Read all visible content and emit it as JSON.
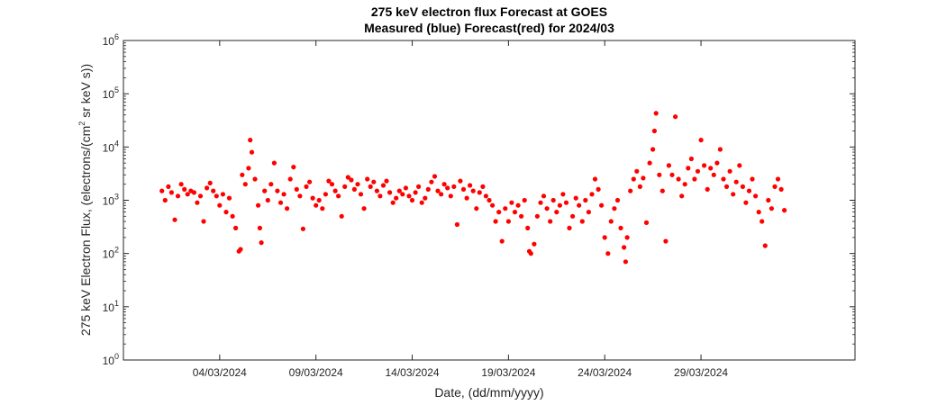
{
  "chart_data": {
    "type": "scatter",
    "title": "275 keV electron flux Forecast at GOES",
    "subtitle": "Measured (blue) Forecast(red) for 2024/03",
    "xlabel": "Date, (dd/mm/yyyy)",
    "ylabel_main": "275 keV Electron Flux, (electrons/(cm",
    "ylabel_sup": "2",
    "ylabel_rest": " sr keV s))",
    "y_scale": "log",
    "ylim": [
      1,
      1000000
    ],
    "y_ticks": [
      {
        "value": 1,
        "base": "10",
        "exp": "0"
      },
      {
        "value": 10,
        "base": "10",
        "exp": "1"
      },
      {
        "value": 100,
        "base": "10",
        "exp": "2"
      },
      {
        "value": 1000,
        "base": "10",
        "exp": "3"
      },
      {
        "value": 10000,
        "base": "10",
        "exp": "4"
      },
      {
        "value": 100000,
        "base": "10",
        "exp": "5"
      },
      {
        "value": 1000000,
        "base": "10",
        "exp": "6"
      }
    ],
    "xlim": [
      "2024-02-28T00:00",
      "2024-04-06T00:00"
    ],
    "x_ticks": [
      {
        "date": "2024-03-04T00:00",
        "label": "04/03/2024"
      },
      {
        "date": "2024-03-09T00:00",
        "label": "09/03/2024"
      },
      {
        "date": "2024-03-14T00:00",
        "label": "14/03/2024"
      },
      {
        "date": "2024-03-19T00:00",
        "label": "19/03/2024"
      },
      {
        "date": "2024-03-24T00:00",
        "label": "24/03/2024"
      },
      {
        "date": "2024-03-29T00:00",
        "label": "29/03/2024"
      }
    ],
    "grid": false,
    "series": [
      {
        "color": "#ff0000",
        "marker": "circle",
        "points": [
          [
            "2024-03-01T00:00",
            1500
          ],
          [
            "2024-03-01T04:00",
            1000
          ],
          [
            "2024-03-01T08:00",
            1800
          ],
          [
            "2024-03-01T12:00",
            1400
          ],
          [
            "2024-03-01T16:00",
            430
          ],
          [
            "2024-03-01T20:00",
            1200
          ],
          [
            "2024-03-02T00:00",
            2000
          ],
          [
            "2024-03-02T04:00",
            1600
          ],
          [
            "2024-03-02T08:00",
            1300
          ],
          [
            "2024-03-02T12:00",
            1500
          ],
          [
            "2024-03-02T16:00",
            1400
          ],
          [
            "2024-03-02T20:00",
            900
          ],
          [
            "2024-03-03T00:00",
            1200
          ],
          [
            "2024-03-03T04:00",
            400
          ],
          [
            "2024-03-03T08:00",
            1700
          ],
          [
            "2024-03-03T12:00",
            2100
          ],
          [
            "2024-03-03T16:00",
            1500
          ],
          [
            "2024-03-03T20:00",
            1200
          ],
          [
            "2024-03-04T00:00",
            800
          ],
          [
            "2024-03-04T04:00",
            1300
          ],
          [
            "2024-03-04T08:00",
            600
          ],
          [
            "2024-03-04T12:00",
            1100
          ],
          [
            "2024-03-04T16:00",
            500
          ],
          [
            "2024-03-04T20:00",
            300
          ],
          [
            "2024-03-05T00:00",
            110
          ],
          [
            "2024-03-05T02:00",
            120
          ],
          [
            "2024-03-05T04:00",
            3000
          ],
          [
            "2024-03-05T08:00",
            2000
          ],
          [
            "2024-03-05T12:00",
            4000
          ],
          [
            "2024-03-05T14:00",
            13500
          ],
          [
            "2024-03-05T16:00",
            8000
          ],
          [
            "2024-03-05T20:00",
            2500
          ],
          [
            "2024-03-06T00:00",
            800
          ],
          [
            "2024-03-06T02:00",
            300
          ],
          [
            "2024-03-06T04:00",
            160
          ],
          [
            "2024-03-06T08:00",
            1500
          ],
          [
            "2024-03-06T12:00",
            1000
          ],
          [
            "2024-03-06T16:00",
            2000
          ],
          [
            "2024-03-06T20:00",
            5000
          ],
          [
            "2024-03-07T00:00",
            1500
          ],
          [
            "2024-03-07T04:00",
            900
          ],
          [
            "2024-03-07T08:00",
            1300
          ],
          [
            "2024-03-07T12:00",
            700
          ],
          [
            "2024-03-07T16:00",
            2500
          ],
          [
            "2024-03-07T20:00",
            4200
          ],
          [
            "2024-03-08T00:00",
            1600
          ],
          [
            "2024-03-08T04:00",
            1200
          ],
          [
            "2024-03-08T08:00",
            290
          ],
          [
            "2024-03-08T12:00",
            1800
          ],
          [
            "2024-03-08T16:00",
            2200
          ],
          [
            "2024-03-08T20:00",
            1100
          ],
          [
            "2024-03-09T00:00",
            800
          ],
          [
            "2024-03-09T04:00",
            1000
          ],
          [
            "2024-03-09T08:00",
            700
          ],
          [
            "2024-03-09T12:00",
            1300
          ],
          [
            "2024-03-09T16:00",
            2300
          ],
          [
            "2024-03-09T20:00",
            2000
          ],
          [
            "2024-03-10T00:00",
            1500
          ],
          [
            "2024-03-10T04:00",
            1200
          ],
          [
            "2024-03-10T08:00",
            500
          ],
          [
            "2024-03-10T12:00",
            1800
          ],
          [
            "2024-03-10T16:00",
            2700
          ],
          [
            "2024-03-10T20:00",
            2400
          ],
          [
            "2024-03-11T00:00",
            1600
          ],
          [
            "2024-03-11T04:00",
            2000
          ],
          [
            "2024-03-11T08:00",
            1300
          ],
          [
            "2024-03-11T12:00",
            700
          ],
          [
            "2024-03-11T16:00",
            2500
          ],
          [
            "2024-03-11T20:00",
            1800
          ],
          [
            "2024-03-12T00:00",
            2200
          ],
          [
            "2024-03-12T04:00",
            1500
          ],
          [
            "2024-03-12T08:00",
            1200
          ],
          [
            "2024-03-12T12:00",
            1900
          ],
          [
            "2024-03-12T16:00",
            2300
          ],
          [
            "2024-03-12T20:00",
            1400
          ],
          [
            "2024-03-13T00:00",
            900
          ],
          [
            "2024-03-13T04:00",
            1100
          ],
          [
            "2024-03-13T08:00",
            1500
          ],
          [
            "2024-03-13T12:00",
            1300
          ],
          [
            "2024-03-13T16:00",
            1700
          ],
          [
            "2024-03-13T20:00",
            1200
          ],
          [
            "2024-03-14T00:00",
            1000
          ],
          [
            "2024-03-14T04:00",
            1400
          ],
          [
            "2024-03-14T08:00",
            1800
          ],
          [
            "2024-03-14T12:00",
            900
          ],
          [
            "2024-03-14T16:00",
            1100
          ],
          [
            "2024-03-14T20:00",
            1600
          ],
          [
            "2024-03-15T00:00",
            2200
          ],
          [
            "2024-03-15T04:00",
            2800
          ],
          [
            "2024-03-15T08:00",
            1500
          ],
          [
            "2024-03-15T12:00",
            1300
          ],
          [
            "2024-03-15T16:00",
            2000
          ],
          [
            "2024-03-15T20:00",
            1700
          ],
          [
            "2024-03-16T00:00",
            1200
          ],
          [
            "2024-03-16T04:00",
            1800
          ],
          [
            "2024-03-16T08:00",
            350
          ],
          [
            "2024-03-16T12:00",
            2300
          ],
          [
            "2024-03-16T16:00",
            1600
          ],
          [
            "2024-03-16T20:00",
            1100
          ],
          [
            "2024-03-17T00:00",
            1900
          ],
          [
            "2024-03-17T04:00",
            1500
          ],
          [
            "2024-03-17T08:00",
            700
          ],
          [
            "2024-03-17T12:00",
            1400
          ],
          [
            "2024-03-17T16:00",
            1800
          ],
          [
            "2024-03-17T20:00",
            1200
          ],
          [
            "2024-03-18T00:00",
            1000
          ],
          [
            "2024-03-18T04:00",
            800
          ],
          [
            "2024-03-18T08:00",
            400
          ],
          [
            "2024-03-18T12:00",
            600
          ],
          [
            "2024-03-18T16:00",
            170
          ],
          [
            "2024-03-18T20:00",
            700
          ],
          [
            "2024-03-19T00:00",
            400
          ],
          [
            "2024-03-19T04:00",
            900
          ],
          [
            "2024-03-19T08:00",
            600
          ],
          [
            "2024-03-19T12:00",
            800
          ],
          [
            "2024-03-19T16:00",
            500
          ],
          [
            "2024-03-19T20:00",
            1000
          ],
          [
            "2024-03-20T00:00",
            300
          ],
          [
            "2024-03-20T02:00",
            110
          ],
          [
            "2024-03-20T04:00",
            100
          ],
          [
            "2024-03-20T08:00",
            150
          ],
          [
            "2024-03-20T12:00",
            500
          ],
          [
            "2024-03-20T16:00",
            900
          ],
          [
            "2024-03-20T20:00",
            1200
          ],
          [
            "2024-03-21T00:00",
            700
          ],
          [
            "2024-03-21T04:00",
            400
          ],
          [
            "2024-03-21T08:00",
            1000
          ],
          [
            "2024-03-21T12:00",
            600
          ],
          [
            "2024-03-21T16:00",
            800
          ],
          [
            "2024-03-21T20:00",
            1300
          ],
          [
            "2024-03-22T00:00",
            900
          ],
          [
            "2024-03-22T04:00",
            300
          ],
          [
            "2024-03-22T08:00",
            500
          ],
          [
            "2024-03-22T12:00",
            1100
          ],
          [
            "2024-03-22T16:00",
            800
          ],
          [
            "2024-03-22T20:00",
            400
          ],
          [
            "2024-03-23T00:00",
            1000
          ],
          [
            "2024-03-23T04:00",
            600
          ],
          [
            "2024-03-23T08:00",
            1300
          ],
          [
            "2024-03-23T12:00",
            2500
          ],
          [
            "2024-03-23T16:00",
            1600
          ],
          [
            "2024-03-23T20:00",
            800
          ],
          [
            "2024-03-24T00:00",
            200
          ],
          [
            "2024-03-24T04:00",
            100
          ],
          [
            "2024-03-24T08:00",
            400
          ],
          [
            "2024-03-24T12:00",
            700
          ],
          [
            "2024-03-24T16:00",
            1000
          ],
          [
            "2024-03-24T20:00",
            300
          ],
          [
            "2024-03-25T00:00",
            130
          ],
          [
            "2024-03-25T02:00",
            70
          ],
          [
            "2024-03-25T04:00",
            200
          ],
          [
            "2024-03-25T08:00",
            1500
          ],
          [
            "2024-03-25T12:00",
            2500
          ],
          [
            "2024-03-25T16:00",
            3500
          ],
          [
            "2024-03-25T20:00",
            1800
          ],
          [
            "2024-03-26T00:00",
            2600
          ],
          [
            "2024-03-26T04:00",
            380
          ],
          [
            "2024-03-26T08:00",
            5000
          ],
          [
            "2024-03-26T12:00",
            9000
          ],
          [
            "2024-03-26T14:00",
            20000
          ],
          [
            "2024-03-26T16:00",
            43000
          ],
          [
            "2024-03-26T20:00",
            3000
          ],
          [
            "2024-03-27T00:00",
            1500
          ],
          [
            "2024-03-27T04:00",
            170
          ],
          [
            "2024-03-27T08:00",
            4500
          ],
          [
            "2024-03-27T12:00",
            3000
          ],
          [
            "2024-03-27T16:00",
            37000
          ],
          [
            "2024-03-27T20:00",
            2500
          ],
          [
            "2024-03-28T00:00",
            1200
          ],
          [
            "2024-03-28T04:00",
            2000
          ],
          [
            "2024-03-28T08:00",
            4000
          ],
          [
            "2024-03-28T12:00",
            6000
          ],
          [
            "2024-03-28T16:00",
            2500
          ],
          [
            "2024-03-28T20:00",
            3500
          ],
          [
            "2024-03-29T00:00",
            13500
          ],
          [
            "2024-03-29T04:00",
            4500
          ],
          [
            "2024-03-29T08:00",
            1600
          ],
          [
            "2024-03-29T12:00",
            4000
          ],
          [
            "2024-03-29T16:00",
            3000
          ],
          [
            "2024-03-29T20:00",
            5000
          ],
          [
            "2024-03-30T00:00",
            9000
          ],
          [
            "2024-03-30T04:00",
            2500
          ],
          [
            "2024-03-30T08:00",
            1800
          ],
          [
            "2024-03-30T12:00",
            3500
          ],
          [
            "2024-03-30T16:00",
            1300
          ],
          [
            "2024-03-30T20:00",
            2200
          ],
          [
            "2024-03-31T00:00",
            4500
          ],
          [
            "2024-03-31T04:00",
            1800
          ],
          [
            "2024-03-31T08:00",
            900
          ],
          [
            "2024-03-31T12:00",
            1500
          ],
          [
            "2024-03-31T16:00",
            2500
          ],
          [
            "2024-03-31T20:00",
            1200
          ],
          [
            "2024-04-01T00:00",
            600
          ],
          [
            "2024-04-01T04:00",
            400
          ],
          [
            "2024-04-01T08:00",
            140
          ],
          [
            "2024-04-01T12:00",
            1000
          ],
          [
            "2024-04-01T16:00",
            700
          ],
          [
            "2024-04-01T20:00",
            1800
          ],
          [
            "2024-04-02T00:00",
            2500
          ],
          [
            "2024-04-02T04:00",
            1600
          ],
          [
            "2024-04-02T08:00",
            650
          ]
        ]
      }
    ]
  }
}
